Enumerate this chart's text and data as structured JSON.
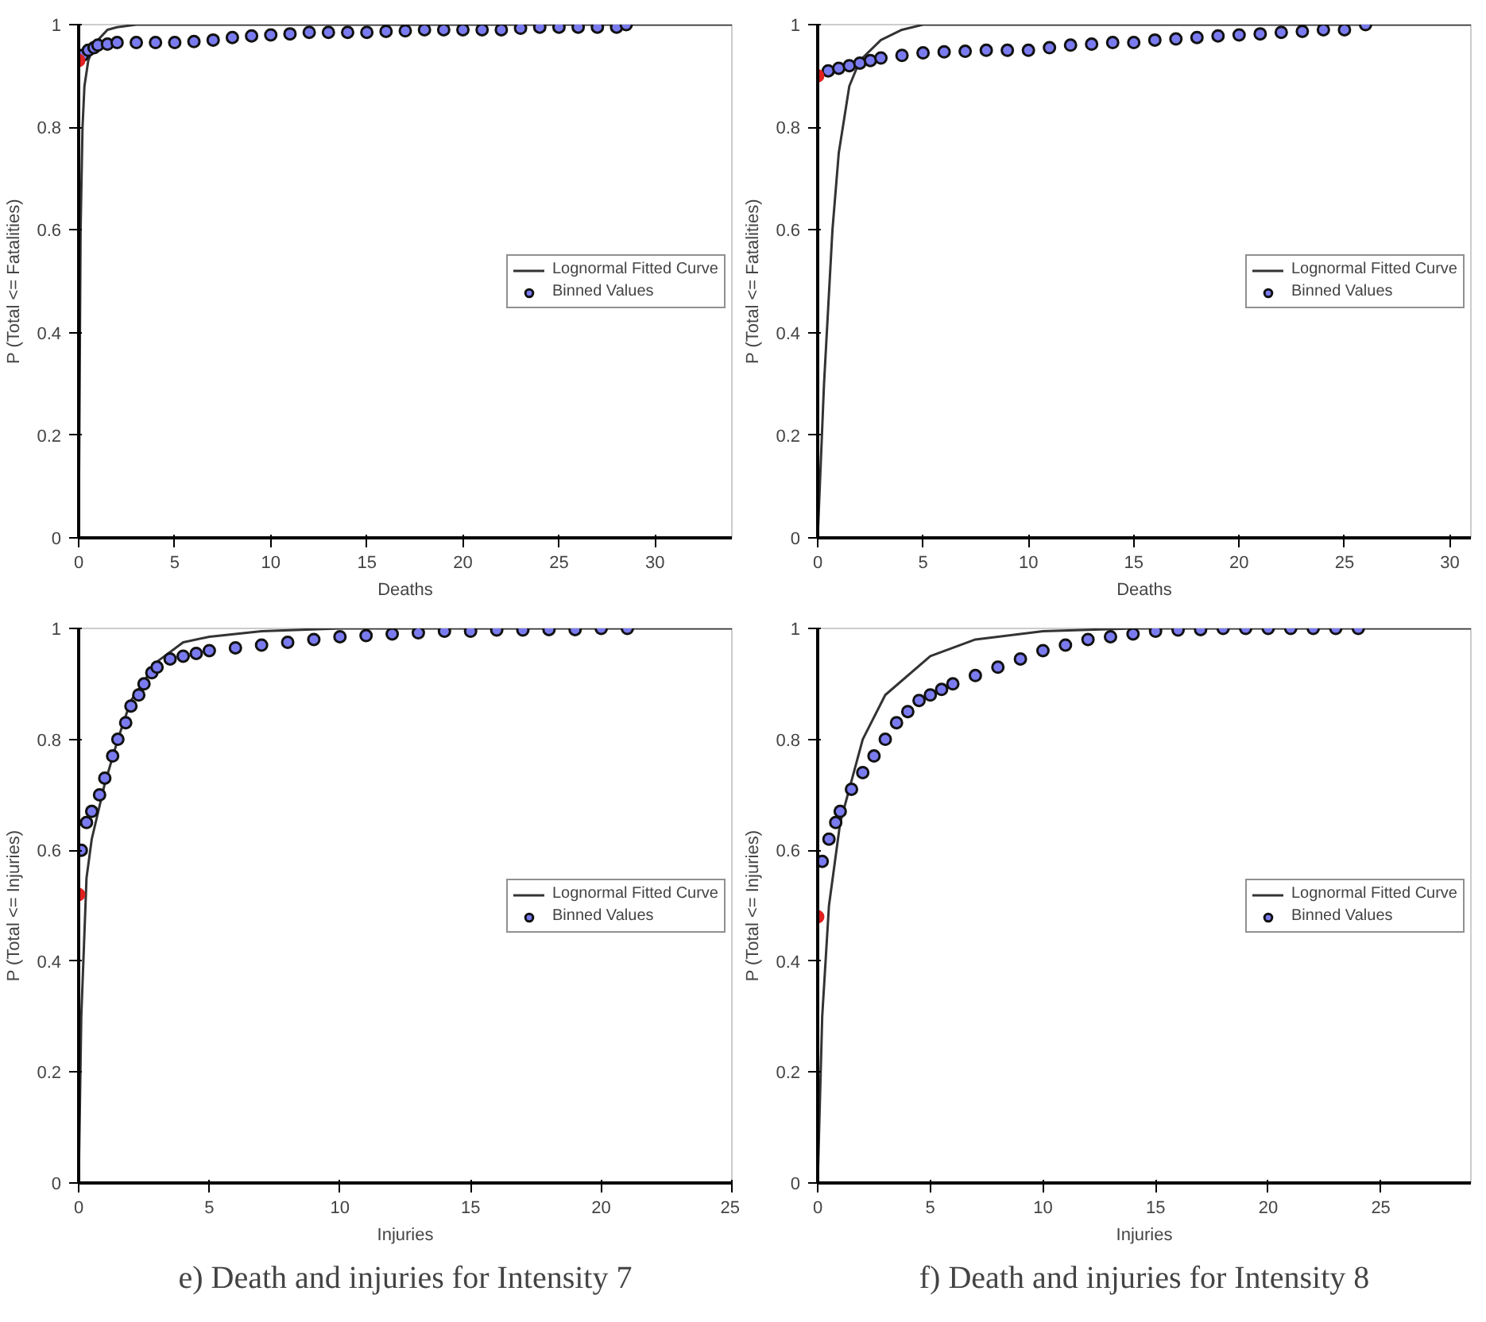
{
  "chart_data": [
    {
      "type": "line",
      "xlabel": "Deaths",
      "ylabel": "P (Total <= Fatalities)",
      "xlim": [
        0,
        34
      ],
      "xticks": [
        0,
        5,
        10,
        15,
        20,
        25,
        30
      ],
      "ylim": [
        0,
        1
      ],
      "yticks": [
        0,
        0.2,
        0.4,
        0.6,
        0.8,
        1
      ],
      "grid": false,
      "legend": "right",
      "series": [
        {
          "name": "Lognormal Fitted Curve",
          "type": "line",
          "color": "#333333",
          "x": [
            0,
            0.05,
            0.1,
            0.2,
            0.3,
            0.5,
            0.8,
            1,
            1.5,
            2,
            3,
            34
          ],
          "values": [
            0,
            0.3,
            0.6,
            0.8,
            0.88,
            0.93,
            0.96,
            0.97,
            0.99,
            0.995,
            1,
            1
          ]
        },
        {
          "name": "Binned Values",
          "type": "scatter",
          "marker": "circle",
          "color": "#7b7bf0",
          "x": [
            0.2,
            0.5,
            0.8,
            1,
            1.5,
            2,
            3,
            4,
            5,
            6,
            7,
            8,
            9,
            10,
            11,
            12,
            13,
            14,
            15,
            16,
            17,
            18,
            19,
            20,
            21,
            22,
            23,
            24,
            25,
            26,
            27,
            28,
            28.5
          ],
          "values": [
            0.94,
            0.95,
            0.955,
            0.96,
            0.962,
            0.965,
            0.965,
            0.965,
            0.965,
            0.967,
            0.97,
            0.975,
            0.978,
            0.98,
            0.982,
            0.985,
            0.985,
            0.985,
            0.985,
            0.987,
            0.988,
            0.99,
            0.99,
            0.99,
            0.99,
            0.99,
            0.993,
            0.995,
            0.995,
            0.995,
            0.995,
            0.995,
            1
          ]
        },
        {
          "type": "scatter",
          "marker": "circle",
          "color": "#e02020",
          "x": [
            0
          ],
          "values": [
            0.93
          ]
        }
      ]
    },
    {
      "type": "line",
      "xlabel": "Deaths",
      "ylabel": "P (Total <= Fatalities)",
      "xlim": [
        0,
        31
      ],
      "xticks": [
        0,
        5,
        10,
        15,
        20,
        25,
        30
      ],
      "ylim": [
        0,
        1
      ],
      "yticks": [
        0,
        0.2,
        0.4,
        0.6,
        0.8,
        1
      ],
      "grid": false,
      "legend": "right",
      "series": [
        {
          "name": "Lognormal Fitted Curve",
          "type": "line",
          "color": "#333333",
          "x": [
            0,
            0.3,
            0.7,
            1,
            1.5,
            2,
            3,
            4,
            5,
            31
          ],
          "values": [
            0,
            0.3,
            0.6,
            0.75,
            0.88,
            0.93,
            0.97,
            0.99,
            1,
            1
          ]
        },
        {
          "name": "Binned Values",
          "type": "scatter",
          "marker": "circle",
          "color": "#7b7bf0",
          "x": [
            0.5,
            1,
            1.5,
            2,
            2.5,
            3,
            4,
            5,
            6,
            7,
            8,
            9,
            10,
            11,
            12,
            13,
            14,
            15,
            16,
            17,
            18,
            19,
            20,
            21,
            22,
            23,
            24,
            25,
            26
          ],
          "values": [
            0.91,
            0.915,
            0.92,
            0.925,
            0.93,
            0.935,
            0.94,
            0.945,
            0.947,
            0.948,
            0.95,
            0.95,
            0.95,
            0.955,
            0.96,
            0.962,
            0.965,
            0.965,
            0.97,
            0.972,
            0.975,
            0.978,
            0.98,
            0.982,
            0.985,
            0.987,
            0.99,
            0.99,
            1
          ]
        },
        {
          "type": "scatter",
          "marker": "circle",
          "color": "#e02020",
          "x": [
            0
          ],
          "values": [
            0.9
          ]
        }
      ]
    },
    {
      "type": "line",
      "xlabel": "Injuries",
      "ylabel": "P (Total <= Injuries)",
      "xlim": [
        0,
        25
      ],
      "xticks": [
        0,
        5,
        10,
        15,
        20,
        25
      ],
      "ylim": [
        0,
        1
      ],
      "yticks": [
        0,
        0.2,
        0.4,
        0.6,
        0.8,
        1
      ],
      "grid": false,
      "legend": "right",
      "annotations": [
        "e) Death and injuries for Intensity 7"
      ],
      "series": [
        {
          "name": "Lognormal Fitted Curve",
          "type": "line",
          "color": "#333333",
          "x": [
            0,
            0.1,
            0.3,
            0.5,
            1,
            1.5,
            2,
            3,
            4,
            5,
            7,
            10,
            25
          ],
          "values": [
            0,
            0.3,
            0.55,
            0.62,
            0.72,
            0.8,
            0.87,
            0.94,
            0.975,
            0.985,
            0.995,
            1,
            1
          ]
        },
        {
          "name": "Binned Values",
          "type": "scatter",
          "marker": "circle",
          "color": "#7b7bf0",
          "x": [
            0.1,
            0.3,
            0.5,
            0.8,
            1,
            1.3,
            1.5,
            1.8,
            2,
            2.3,
            2.5,
            2.8,
            3,
            3.5,
            4,
            4.5,
            5,
            6,
            7,
            8,
            9,
            10,
            11,
            12,
            13,
            14,
            15,
            16,
            17,
            18,
            19,
            20,
            21
          ],
          "values": [
            0.6,
            0.65,
            0.67,
            0.7,
            0.73,
            0.77,
            0.8,
            0.83,
            0.86,
            0.88,
            0.9,
            0.92,
            0.93,
            0.945,
            0.95,
            0.955,
            0.96,
            0.965,
            0.97,
            0.975,
            0.98,
            0.985,
            0.987,
            0.99,
            0.992,
            0.995,
            0.995,
            0.997,
            0.997,
            0.998,
            0.998,
            1,
            1
          ]
        },
        {
          "type": "scatter",
          "marker": "circle",
          "color": "#e02020",
          "x": [
            0
          ],
          "values": [
            0.52
          ]
        }
      ]
    },
    {
      "type": "line",
      "xlabel": "Injuries",
      "ylabel": "P (Total <= Injuries)",
      "xlim": [
        0,
        29
      ],
      "xticks": [
        0,
        5,
        10,
        15,
        20,
        25
      ],
      "ylim": [
        0,
        1
      ],
      "yticks": [
        0,
        0.2,
        0.4,
        0.6,
        0.8,
        1
      ],
      "grid": false,
      "legend": "right",
      "annotations": [
        "f) Death and injuries for Intensity 8"
      ],
      "series": [
        {
          "name": "Lognormal Fitted Curve",
          "type": "line",
          "color": "#333333",
          "x": [
            0,
            0.2,
            0.5,
            1,
            2,
            3,
            5,
            7,
            10,
            14,
            29
          ],
          "values": [
            0,
            0.3,
            0.5,
            0.65,
            0.8,
            0.88,
            0.95,
            0.98,
            0.995,
            1,
            1
          ]
        },
        {
          "name": "Binned Values",
          "type": "scatter",
          "marker": "circle",
          "color": "#7b7bf0",
          "x": [
            0.2,
            0.5,
            0.8,
            1,
            1.5,
            2,
            2.5,
            3,
            3.5,
            4,
            4.5,
            5,
            5.5,
            6,
            7,
            8,
            9,
            10,
            11,
            12,
            13,
            14,
            15,
            16,
            17,
            18,
            19,
            20,
            21,
            22,
            23,
            24
          ],
          "values": [
            0.58,
            0.62,
            0.65,
            0.67,
            0.71,
            0.74,
            0.77,
            0.8,
            0.83,
            0.85,
            0.87,
            0.88,
            0.89,
            0.9,
            0.915,
            0.93,
            0.945,
            0.96,
            0.97,
            0.98,
            0.985,
            0.99,
            0.995,
            0.997,
            0.998,
            1,
            1,
            1,
            1,
            1,
            1,
            1
          ]
        },
        {
          "type": "scatter",
          "marker": "circle",
          "color": "#e02020",
          "x": [
            0
          ],
          "values": [
            0.48
          ]
        }
      ]
    }
  ]
}
